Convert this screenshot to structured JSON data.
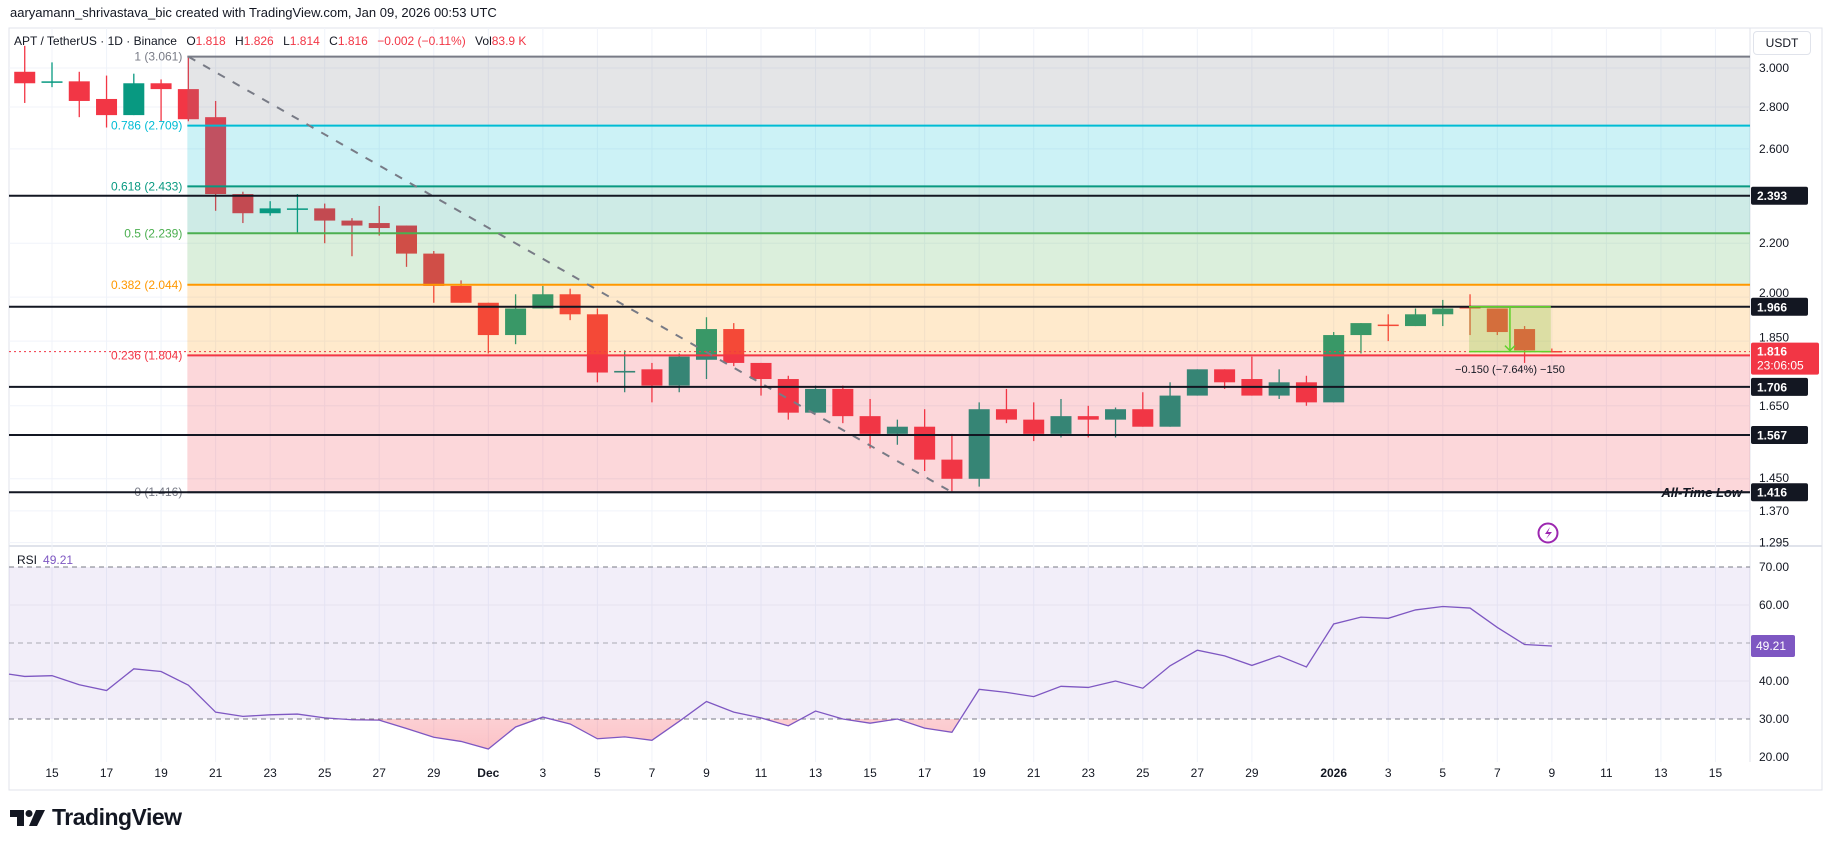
{
  "header": {
    "attribution": "aaryamann_shrivastava_bic created with TradingView.com, Jan 09, 2026 00:53 UTC"
  },
  "symbol": {
    "name": "APT / TetherUS · 1D · Binance",
    "o_label": "O",
    "o": "1.818",
    "h_label": "H",
    "h": "1.826",
    "l_label": "L",
    "l": "1.814",
    "c_label": "C",
    "c": "1.816",
    "change": "−0.002 (−0.11%)",
    "vol_label": "Vol",
    "vol": "83.9 K"
  },
  "price_axis": {
    "unit": "USDT",
    "scale": "log",
    "ticks": [
      "3.000",
      "2.800",
      "2.600",
      "2.200",
      "2.000",
      "1.850",
      "1.650",
      "1.450",
      "1.370",
      "1.295"
    ],
    "current_price": "1.816",
    "countdown": "23:06:05"
  },
  "fib": {
    "levels": [
      {
        "label": "1 (3.061)",
        "price": 3.061,
        "color": "#787b86"
      },
      {
        "label": "0.786 (2.709)",
        "price": 2.709,
        "color": "#00bcd4"
      },
      {
        "label": "0.618 (2.433)",
        "price": 2.433,
        "color": "#089981"
      },
      {
        "label": "0.5 (2.239)",
        "price": 2.239,
        "color": "#4caf50"
      },
      {
        "label": "0.382 (2.044)",
        "price": 2.044,
        "color": "#ff9800"
      },
      {
        "label": "0.236 (1.804)",
        "price": 1.804,
        "color": "#f23645"
      },
      {
        "label": "0 (1.416)",
        "price": 1.416,
        "color": "#787b86"
      }
    ],
    "start_date": "2025-11-20"
  },
  "horizontal_lines": [
    {
      "label": "2.393",
      "price": 2.393
    },
    {
      "label": "1.966",
      "price": 1.966
    },
    {
      "label": "1.706",
      "price": 1.706
    },
    {
      "label": "1.567",
      "price": 1.567
    },
    {
      "label": "1.416",
      "price": 1.416
    }
  ],
  "annotation": {
    "text": "All-Time Low"
  },
  "trendline": {
    "from": {
      "date": "2025-11-20",
      "price": 3.061
    },
    "to": {
      "date": "2025-12-18",
      "price": 1.416
    }
  },
  "measure": {
    "label": "−0.150 (−7.64%) −150",
    "from": {
      "date": "2026-01-06",
      "price": 1.966
    },
    "to": {
      "date": "2026-01-09",
      "price": 1.816
    }
  },
  "colors": {
    "up": "#089981",
    "down": "#f23645",
    "rsi": "#7e57c2",
    "badge": "#131722",
    "alert": "#9c27b0"
  },
  "alert_icon": "lightning-icon",
  "rsi": {
    "label": "RSI",
    "value": "49.21",
    "ticks": [
      "70.00",
      "60.00",
      "40.00",
      "30.00",
      "20.00"
    ],
    "bands": [
      70,
      50,
      30
    ]
  },
  "date_axis": {
    "ticks": [
      {
        "label": "15",
        "date": "2025-11-15"
      },
      {
        "label": "17",
        "date": "2025-11-17"
      },
      {
        "label": "19",
        "date": "2025-11-19"
      },
      {
        "label": "21",
        "date": "2025-11-21"
      },
      {
        "label": "23",
        "date": "2025-11-23"
      },
      {
        "label": "25",
        "date": "2025-11-25"
      },
      {
        "label": "27",
        "date": "2025-11-27"
      },
      {
        "label": "29",
        "date": "2025-11-29"
      },
      {
        "label": "Dec",
        "date": "2025-12-01",
        "major": true
      },
      {
        "label": "3",
        "date": "2025-12-03"
      },
      {
        "label": "5",
        "date": "2025-12-05"
      },
      {
        "label": "7",
        "date": "2025-12-07"
      },
      {
        "label": "9",
        "date": "2025-12-09"
      },
      {
        "label": "11",
        "date": "2025-12-11"
      },
      {
        "label": "13",
        "date": "2025-12-13"
      },
      {
        "label": "15",
        "date": "2025-12-15"
      },
      {
        "label": "17",
        "date": "2025-12-17"
      },
      {
        "label": "19",
        "date": "2025-12-19"
      },
      {
        "label": "21",
        "date": "2025-12-21"
      },
      {
        "label": "23",
        "date": "2025-12-23"
      },
      {
        "label": "25",
        "date": "2025-12-25"
      },
      {
        "label": "27",
        "date": "2025-12-27"
      },
      {
        "label": "29",
        "date": "2025-12-29"
      },
      {
        "label": "2026",
        "date": "2026-01-01",
        "major": true
      },
      {
        "label": "3",
        "date": "2026-01-03"
      },
      {
        "label": "5",
        "date": "2026-01-05"
      },
      {
        "label": "7",
        "date": "2026-01-07"
      },
      {
        "label": "9",
        "date": "2026-01-09"
      },
      {
        "label": "11",
        "date": "2026-01-11"
      },
      {
        "label": "13",
        "date": "2026-01-13"
      },
      {
        "label": "15",
        "date": "2026-01-15"
      }
    ]
  },
  "logo": {
    "text": "TradingView"
  },
  "chart_data": {
    "type": "candlestick",
    "dates": [
      "2025-11-14",
      "2025-11-15",
      "2025-11-16",
      "2025-11-17",
      "2025-11-18",
      "2025-11-19",
      "2025-11-20",
      "2025-11-21",
      "2025-11-22",
      "2025-11-23",
      "2025-11-24",
      "2025-11-25",
      "2025-11-26",
      "2025-11-27",
      "2025-11-28",
      "2025-11-29",
      "2025-11-30",
      "2025-12-01",
      "2025-12-02",
      "2025-12-03",
      "2025-12-04",
      "2025-12-05",
      "2025-12-06",
      "2025-12-07",
      "2025-12-08",
      "2025-12-09",
      "2025-12-10",
      "2025-12-11",
      "2025-12-12",
      "2025-12-13",
      "2025-12-14",
      "2025-12-15",
      "2025-12-16",
      "2025-12-17",
      "2025-12-18",
      "2025-12-19",
      "2025-12-20",
      "2025-12-21",
      "2025-12-22",
      "2025-12-23",
      "2025-12-24",
      "2025-12-25",
      "2025-12-26",
      "2025-12-27",
      "2025-12-28",
      "2025-12-29",
      "2025-12-30",
      "2025-12-31",
      "2026-01-01",
      "2026-01-02",
      "2026-01-03",
      "2026-01-04",
      "2026-01-05",
      "2026-01-06",
      "2026-01-07",
      "2026-01-08",
      "2026-01-09"
    ],
    "ohlc": [
      [
        2.98,
        3.12,
        2.82,
        2.92
      ],
      [
        2.93,
        3.03,
        2.9,
        2.93
      ],
      [
        2.93,
        2.98,
        2.75,
        2.83
      ],
      [
        2.84,
        2.96,
        2.7,
        2.76
      ],
      [
        2.76,
        2.97,
        2.76,
        2.92
      ],
      [
        2.92,
        2.94,
        2.73,
        2.89
      ],
      [
        2.89,
        3.061,
        2.73,
        2.74
      ],
      [
        2.75,
        2.83,
        2.33,
        2.4
      ],
      [
        2.4,
        2.41,
        2.28,
        2.32
      ],
      [
        2.32,
        2.37,
        2.31,
        2.34
      ],
      [
        2.34,
        2.4,
        2.24,
        2.34
      ],
      [
        2.34,
        2.36,
        2.2,
        2.29
      ],
      [
        2.29,
        2.3,
        2.15,
        2.27
      ],
      [
        2.28,
        2.35,
        2.23,
        2.26
      ],
      [
        2.27,
        2.27,
        2.11,
        2.16
      ],
      [
        2.16,
        2.17,
        1.98,
        2.04
      ],
      [
        2.04,
        2.06,
        1.98,
        1.98
      ],
      [
        1.98,
        1.98,
        1.81,
        1.87
      ],
      [
        1.87,
        2.01,
        1.84,
        1.96
      ],
      [
        1.96,
        2.04,
        1.96,
        2.01
      ],
      [
        2.01,
        2.03,
        1.92,
        1.94
      ],
      [
        1.94,
        1.96,
        1.72,
        1.75
      ],
      [
        1.75,
        1.82,
        1.69,
        1.755
      ],
      [
        1.76,
        1.78,
        1.66,
        1.71
      ],
      [
        1.71,
        1.81,
        1.69,
        1.8
      ],
      [
        1.79,
        1.93,
        1.73,
        1.89
      ],
      [
        1.89,
        1.91,
        1.77,
        1.78
      ],
      [
        1.78,
        1.78,
        1.68,
        1.73
      ],
      [
        1.73,
        1.74,
        1.61,
        1.63
      ],
      [
        1.63,
        1.71,
        1.63,
        1.7
      ],
      [
        1.7,
        1.71,
        1.6,
        1.62
      ],
      [
        1.62,
        1.67,
        1.53,
        1.57
      ],
      [
        1.57,
        1.61,
        1.54,
        1.59
      ],
      [
        1.59,
        1.64,
        1.47,
        1.5
      ],
      [
        1.5,
        1.57,
        1.416,
        1.45
      ],
      [
        1.45,
        1.66,
        1.43,
        1.64
      ],
      [
        1.64,
        1.7,
        1.6,
        1.61
      ],
      [
        1.61,
        1.66,
        1.55,
        1.57
      ],
      [
        1.57,
        1.67,
        1.56,
        1.62
      ],
      [
        1.62,
        1.65,
        1.56,
        1.61
      ],
      [
        1.61,
        1.645,
        1.56,
        1.64
      ],
      [
        1.64,
        1.69,
        1.59,
        1.59
      ],
      [
        1.59,
        1.72,
        1.59,
        1.68
      ],
      [
        1.68,
        1.76,
        1.68,
        1.76
      ],
      [
        1.76,
        1.76,
        1.7,
        1.72
      ],
      [
        1.73,
        1.8,
        1.68,
        1.68
      ],
      [
        1.68,
        1.76,
        1.67,
        1.72
      ],
      [
        1.72,
        1.74,
        1.65,
        1.66
      ],
      [
        1.66,
        1.88,
        1.66,
        1.87
      ],
      [
        1.87,
        1.91,
        1.81,
        1.91
      ],
      [
        1.905,
        1.94,
        1.85,
        1.9
      ],
      [
        1.9,
        1.96,
        1.9,
        1.94
      ],
      [
        1.94,
        1.99,
        1.9,
        1.96
      ],
      [
        1.966,
        2.01,
        1.87,
        1.96
      ],
      [
        1.96,
        1.96,
        1.87,
        1.88
      ],
      [
        1.89,
        1.9,
        1.78,
        1.82
      ],
      [
        1.818,
        1.826,
        1.814,
        1.816
      ]
    ],
    "rsi": [
      41.2,
      41.4,
      39.0,
      37.5,
      43.2,
      42.5,
      38.9,
      31.8,
      30.7,
      31.1,
      31.3,
      30.3,
      29.8,
      29.7,
      27.5,
      25.2,
      24.1,
      22.1,
      27.9,
      30.5,
      28.7,
      24.8,
      25.3,
      24.4,
      29.4,
      34.6,
      31.8,
      30.3,
      28.2,
      32.1,
      30.0,
      28.9,
      30.0,
      27.6,
      26.5,
      37.8,
      37.0,
      35.9,
      38.6,
      38.3,
      40.0,
      38.1,
      44.0,
      48.1,
      46.6,
      44.1,
      46.6,
      43.7,
      55.0,
      56.8,
      56.5,
      58.7,
      59.6,
      59.2,
      54.1,
      49.6,
      49.21
    ],
    "yscale": "log",
    "ylim": [
      1.27,
      3.13
    ],
    "rsi_ylim": [
      18,
      75
    ],
    "grid": true
  }
}
